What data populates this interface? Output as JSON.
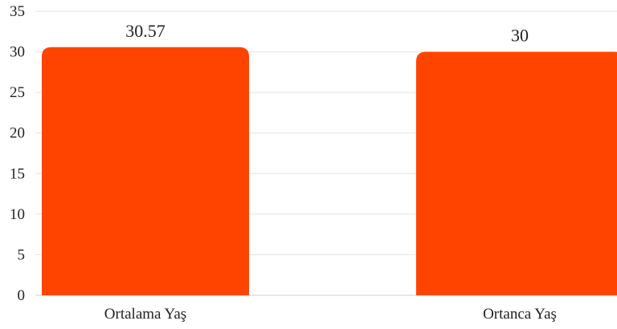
{
  "chart_data": {
    "type": "bar",
    "categories": [
      "Ortalama Yaş",
      "Ortanca Yaş"
    ],
    "values": [
      30.57,
      30
    ],
    "data_labels": [
      "30.57",
      "30"
    ],
    "ylim": [
      0,
      35
    ],
    "y_ticks": [
      0,
      5,
      10,
      15,
      20,
      25,
      30,
      35
    ],
    "title": "",
    "xlabel": "",
    "ylabel": "",
    "grid": true,
    "legend": "none",
    "colors": {
      "bar": "#ff4400",
      "grid": "#e3e3e3",
      "text": "#222222"
    }
  }
}
